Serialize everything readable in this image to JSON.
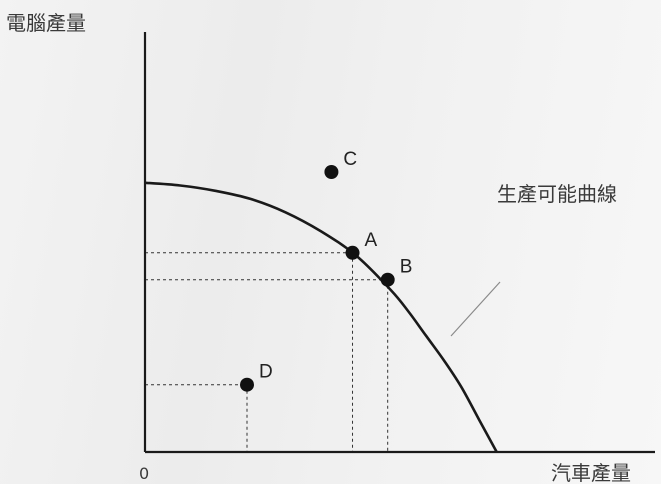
{
  "chart_data": {
    "type": "scatter",
    "ylabel": "電腦產量",
    "xlabel": "汽車產量",
    "origin_label": "0",
    "curve_label": "生產可能曲線",
    "curve": {
      "x": [
        0,
        0.1,
        0.2,
        0.3,
        0.4,
        0.5,
        0.6,
        0.7,
        0.75,
        0.8,
        0.85,
        0.9,
        0.95,
        1.0
      ],
      "y": [
        1.0,
        0.99,
        0.97,
        0.94,
        0.89,
        0.82,
        0.73,
        0.6,
        0.52,
        0.43,
        0.34,
        0.24,
        0.12,
        0
      ]
    },
    "points": [
      {
        "label": "A",
        "x": 0.59,
        "y": 0.74
      },
      {
        "label": "B",
        "x": 0.69,
        "y": 0.64
      },
      {
        "label": "C",
        "x": 0.53,
        "y": 1.04
      },
      {
        "label": "D",
        "x": 0.29,
        "y": 0.25
      }
    ],
    "xlim": [
      0,
      1.45
    ],
    "ylim": [
      0,
      1.56
    ],
    "colors": {
      "axis": "#1a1a1a",
      "curve": "#1a1a1a",
      "point": "#111111",
      "guide": "#333333"
    }
  }
}
